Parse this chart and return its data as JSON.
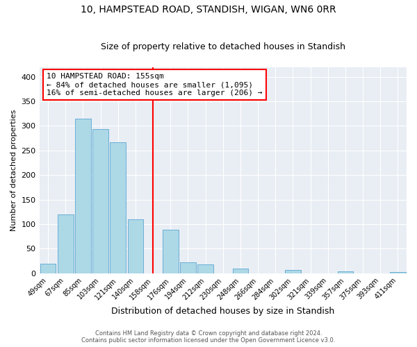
{
  "title": "10, HAMPSTEAD ROAD, STANDISH, WIGAN, WN6 0RR",
  "subtitle": "Size of property relative to detached houses in Standish",
  "xlabel": "Distribution of detached houses by size in Standish",
  "ylabel": "Number of detached properties",
  "bin_labels": [
    "49sqm",
    "67sqm",
    "85sqm",
    "103sqm",
    "121sqm",
    "140sqm",
    "158sqm",
    "176sqm",
    "194sqm",
    "212sqm",
    "230sqm",
    "248sqm",
    "266sqm",
    "284sqm",
    "302sqm",
    "321sqm",
    "339sqm",
    "357sqm",
    "375sqm",
    "393sqm",
    "411sqm"
  ],
  "bar_heights": [
    20,
    120,
    315,
    293,
    267,
    110,
    0,
    89,
    23,
    18,
    0,
    10,
    0,
    0,
    7,
    0,
    0,
    4,
    0,
    0,
    2
  ],
  "bar_color": "#add8e6",
  "bar_edge_color": "#6baed6",
  "vline_x": 6,
  "vline_color": "red",
  "ylim": [
    0,
    420
  ],
  "yticks": [
    0,
    50,
    100,
    150,
    200,
    250,
    300,
    350,
    400
  ],
  "annotation_title": "10 HAMPSTEAD ROAD: 155sqm",
  "annotation_line1": "← 84% of detached houses are smaller (1,095)",
  "annotation_line2": "16% of semi-detached houses are larger (206) →",
  "footer_line1": "Contains HM Land Registry data © Crown copyright and database right 2024.",
  "footer_line2": "Contains public sector information licensed under the Open Government Licence v3.0.",
  "bg_color": "#e8eef4",
  "title_fontsize": 10,
  "subtitle_fontsize": 9,
  "ylabel_fontsize": 8,
  "xlabel_fontsize": 9
}
